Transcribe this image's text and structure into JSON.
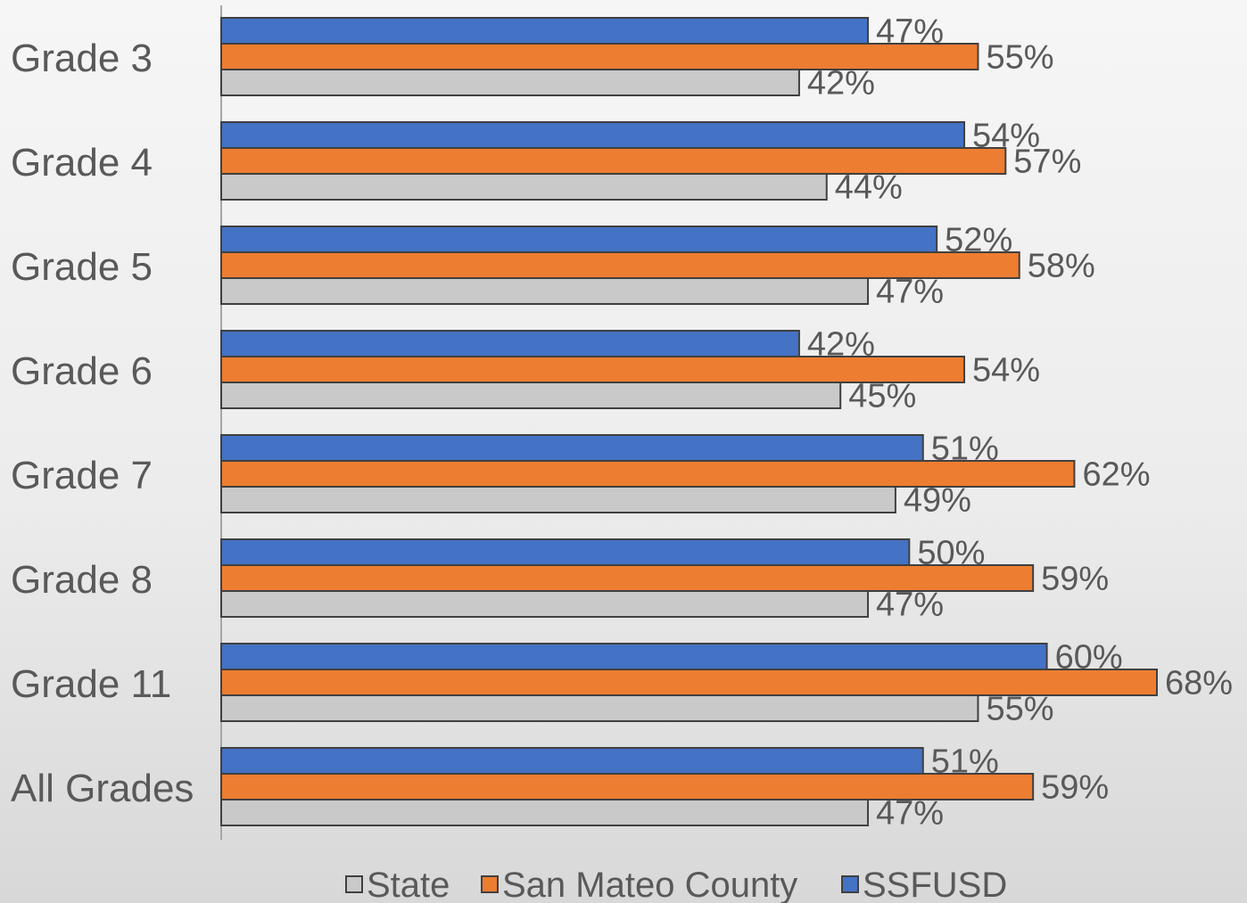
{
  "chart_data": {
    "type": "bar",
    "orientation": "horizontal",
    "categories": [
      "Grade 3",
      "Grade 4",
      "Grade 5",
      "Grade 6",
      "Grade 7",
      "Grade 8",
      "Grade 11",
      "All Grades"
    ],
    "series": [
      {
        "name": "SSFUSD",
        "color": "#4472c4",
        "values": [
          47,
          54,
          52,
          42,
          51,
          50,
          60,
          51
        ],
        "labels": [
          "47%",
          "54%",
          "52%",
          "42%",
          "51%",
          "50%",
          "60%",
          "51%"
        ]
      },
      {
        "name": "San Mateo County",
        "color": "#ed7d31",
        "values": [
          55,
          57,
          58,
          54,
          62,
          59,
          68,
          59
        ],
        "labels": [
          "55%",
          "57%",
          "58%",
          "54%",
          "62%",
          "59%",
          "68%",
          "59%"
        ]
      },
      {
        "name": "State",
        "color": "#c9c9c9",
        "values": [
          42,
          44,
          47,
          45,
          49,
          47,
          55,
          47
        ],
        "labels": [
          "42%",
          "44%",
          "47%",
          "45%",
          "49%",
          "47%",
          "55%",
          "47%"
        ]
      }
    ],
    "legend": {
      "position": "bottom",
      "order": [
        "State",
        "San Mateo County",
        "SSFUSD"
      ]
    },
    "xlim": [
      0,
      68
    ],
    "grid": false,
    "title": "",
    "xlabel": "",
    "ylabel": ""
  }
}
